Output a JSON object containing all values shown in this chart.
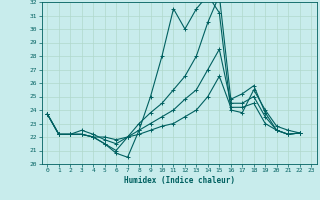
{
  "xlabel": "Humidex (Indice chaleur)",
  "ylabel": "",
  "xlim": [
    -0.5,
    23.5
  ],
  "ylim": [
    20,
    32
  ],
  "yticks": [
    20,
    21,
    22,
    23,
    24,
    25,
    26,
    27,
    28,
    29,
    30,
    31,
    32
  ],
  "xticks": [
    0,
    1,
    2,
    3,
    4,
    5,
    6,
    7,
    8,
    9,
    10,
    11,
    12,
    13,
    14,
    15,
    16,
    17,
    18,
    19,
    20,
    21,
    22,
    23
  ],
  "bg_color": "#c8ecec",
  "grid_color": "#b0d8cc",
  "line_color": "#006060",
  "lines": [
    [
      23.7,
      22.2,
      22.2,
      22.2,
      22.0,
      21.5,
      20.8,
      20.5,
      22.5,
      25.0,
      28.0,
      31.5,
      30.0,
      31.5,
      32.5,
      31.2,
      24.0,
      23.8,
      25.5,
      24.0,
      22.8,
      22.5,
      22.3
    ],
    [
      23.7,
      22.2,
      22.2,
      22.5,
      22.2,
      21.8,
      21.5,
      22.0,
      23.0,
      23.8,
      24.5,
      25.5,
      26.5,
      28.0,
      30.5,
      32.5,
      24.8,
      25.2,
      25.8,
      23.8,
      22.5,
      22.2,
      22.3
    ],
    [
      23.7,
      22.2,
      22.2,
      22.2,
      22.0,
      21.5,
      21.0,
      22.0,
      22.5,
      23.0,
      23.5,
      24.0,
      24.8,
      25.5,
      27.0,
      28.5,
      24.5,
      24.5,
      25.0,
      23.5,
      22.5,
      22.2,
      22.3
    ],
    [
      23.7,
      22.2,
      22.2,
      22.2,
      22.0,
      22.0,
      21.8,
      22.0,
      22.2,
      22.5,
      22.8,
      23.0,
      23.5,
      24.0,
      25.0,
      26.5,
      24.2,
      24.2,
      24.5,
      23.0,
      22.5,
      22.2,
      22.3
    ]
  ]
}
